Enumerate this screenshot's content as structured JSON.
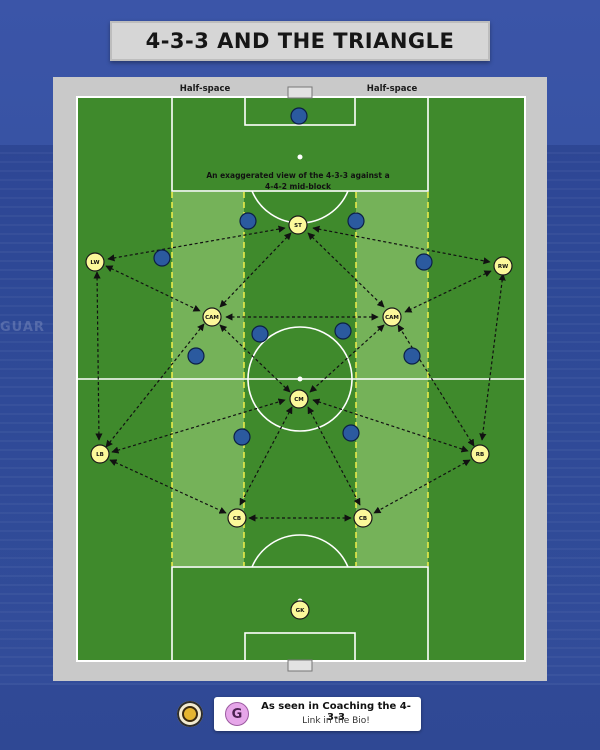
{
  "title": "4-3-3 AND THE TRIANGLE",
  "background_text": "GUAR",
  "half_space_left": "Half-space",
  "half_space_right": "Half-space",
  "annotation_line1": "An exaggerated view of the 4-3-3 against a",
  "annotation_line2": "4-4-2 mid-block",
  "players": {
    "gk": "GK",
    "cb_left": "CB",
    "cb_right": "CB",
    "lb": "LB",
    "rb": "RB",
    "cm": "CM",
    "cam_left": "CAM",
    "cam_right": "CAM",
    "lw": "LW",
    "st": "ST",
    "rw": "RW"
  },
  "colors": {
    "pitch_dark": "#3f8a2c",
    "pitch_light": "#4c9a36",
    "half_space": "#7fb862",
    "half_space_line": "#f2f04a",
    "own_player": "#fbf89a",
    "opponent": "#2b5a9f",
    "background": "#3b55a8"
  },
  "footer": {
    "cta_icon": "G",
    "cta_title": "As seen in Coaching the 4-3-3",
    "cta_sub": "Link in the Bio!"
  }
}
